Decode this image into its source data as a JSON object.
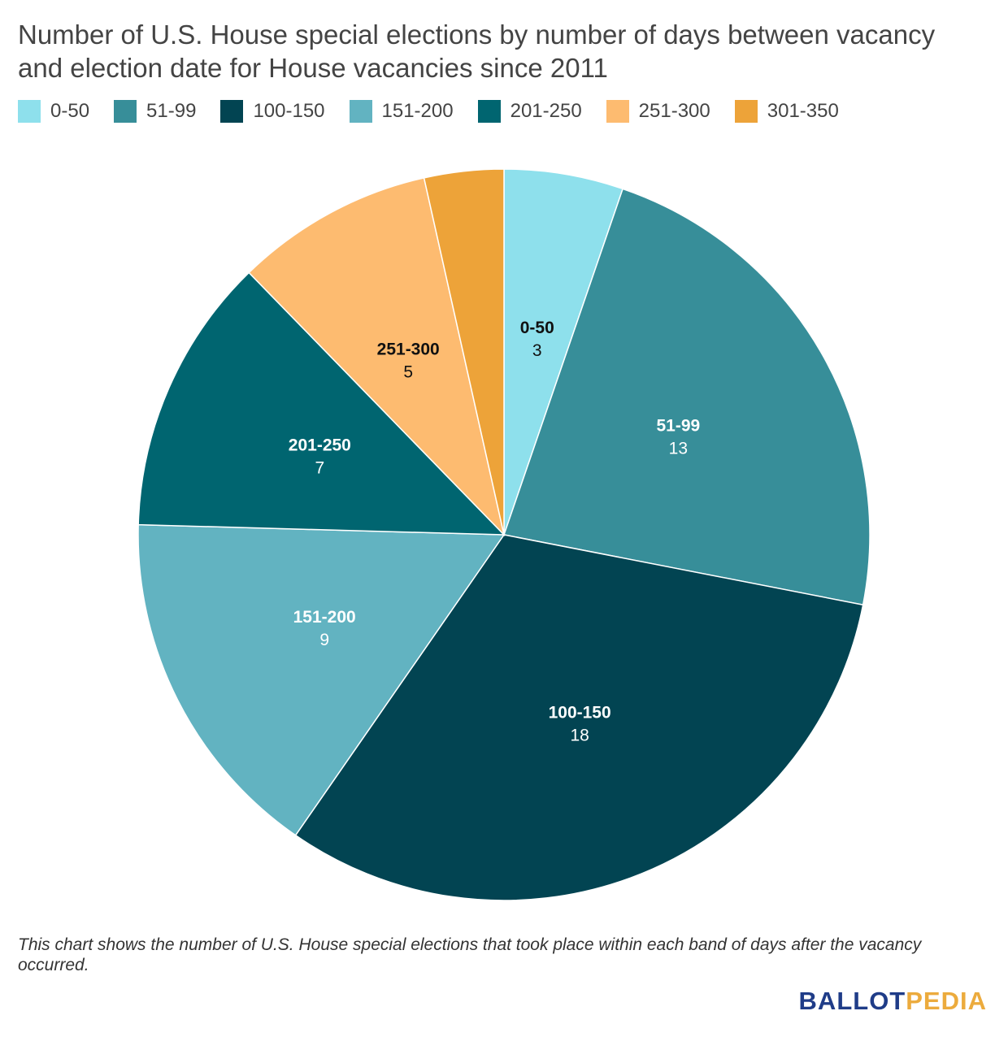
{
  "chart_data": {
    "type": "pie",
    "title": "Number of U.S. House special elections by number of days between vacancy and election date for House vacancies since 2011",
    "categories": [
      "0-50",
      "51-99",
      "100-150",
      "151-200",
      "201-250",
      "251-300",
      "301-350"
    ],
    "values": [
      3,
      13,
      18,
      9,
      7,
      5,
      2
    ],
    "colors": [
      "#8ee0ec",
      "#378e99",
      "#024452",
      "#62b3c1",
      "#006570",
      "#fdbb70",
      "#eda339"
    ],
    "label_colors": [
      "#111111",
      "#ffffff",
      "#ffffff",
      "#ffffff",
      "#ffffff",
      "#111111",
      "#111111"
    ],
    "slice_labels_shown": [
      true,
      true,
      true,
      true,
      true,
      true,
      false
    ],
    "legend_placement": "top-left",
    "start_angle": "12 o'clock",
    "direction": "clockwise"
  },
  "footnote": "This chart shows the number of U.S. House special elections that took place within each band of days after the vacancy occurred.",
  "logo": {
    "part1": "BALLOT",
    "part2": "PEDIA"
  }
}
